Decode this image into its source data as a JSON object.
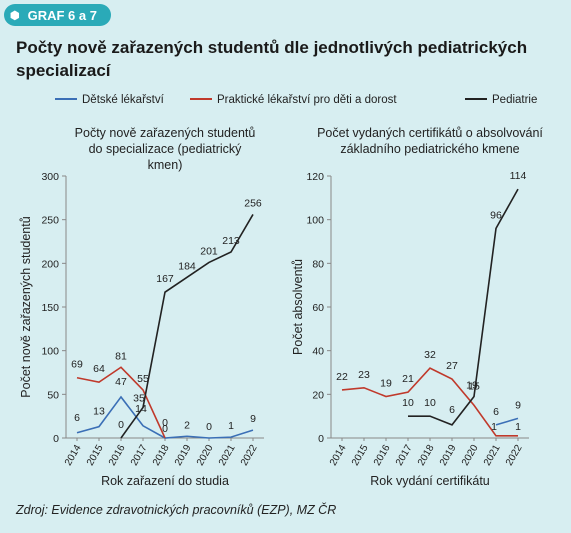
{
  "badge": "GRAF 6 a 7",
  "title": "Počty nově zařazených studentů dle jednotlivých pediatrických specializací",
  "legend": [
    {
      "label": "Dětské lékařství",
      "color": "#3b6fb6"
    },
    {
      "label": "Praktické lékařství pro děti a dorost",
      "color": "#c0392b"
    },
    {
      "label": "Pediatrie",
      "color": "#222222"
    }
  ],
  "source": "Zdroj: Evidence zdravotnických pracovníků (EZP), MZ ČR",
  "chart_data": [
    {
      "type": "line",
      "title": "Počty nově zařazených studentů do specializace (pediatrický kmen)",
      "xlabel": "Rok zařazení do studia",
      "ylabel": "Počet nově zařazených studentů",
      "ylim": [
        0,
        300
      ],
      "yticks": [
        0,
        50,
        100,
        150,
        200,
        250,
        300
      ],
      "grid": false,
      "x": [
        "2014",
        "2015",
        "2016",
        "2017",
        "2018",
        "2019",
        "2020",
        "2021",
        "2022"
      ],
      "series": [
        {
          "name": "Dětské lékařství",
          "color": "#3b6fb6",
          "values": [
            6,
            13,
            47,
            14,
            0,
            2,
            0,
            1,
            9
          ]
        },
        {
          "name": "Praktické lékařství pro děti a dorost",
          "color": "#c0392b",
          "values": [
            69,
            64,
            81,
            55,
            0,
            null,
            null,
            null,
            null
          ]
        },
        {
          "name": "Pediatrie",
          "color": "#222222",
          "values": [
            null,
            null,
            0,
            35,
            167,
            184,
            201,
            213,
            256
          ]
        }
      ]
    },
    {
      "type": "line",
      "title": "Počet vydaných certifikátů o absolvování základního pediatrického kmene",
      "xlabel": "Rok vydání certifikátu",
      "ylabel": "Počet absolventů",
      "ylim": [
        0,
        120
      ],
      "yticks": [
        0,
        20,
        40,
        60,
        80,
        100,
        120
      ],
      "grid": false,
      "x": [
        "2014",
        "2015",
        "2016",
        "2017",
        "2018",
        "2019",
        "2020",
        "2021",
        "2022"
      ],
      "series": [
        {
          "name": "Dětské lékařství",
          "color": "#3b6fb6",
          "values": [
            null,
            null,
            null,
            null,
            null,
            null,
            null,
            6,
            9
          ]
        },
        {
          "name": "Praktické lékařství pro děti a dorost",
          "color": "#c0392b",
          "values": [
            22,
            23,
            19,
            21,
            32,
            27,
            15,
            1,
            1
          ]
        },
        {
          "name": "Pediatrie",
          "color": "#222222",
          "values": [
            null,
            null,
            null,
            10,
            10,
            6,
            19,
            96,
            114
          ]
        }
      ]
    }
  ]
}
